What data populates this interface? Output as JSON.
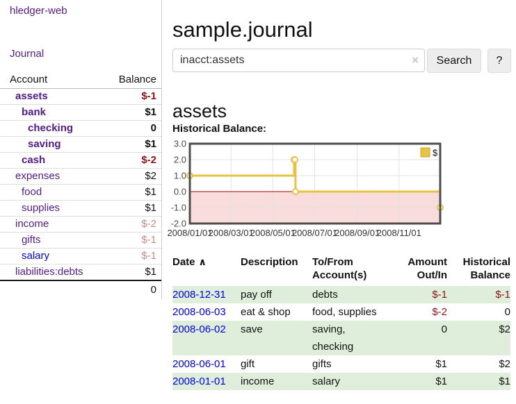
{
  "app": {
    "brand": "hledger-web"
  },
  "nav": {
    "journal": "Journal"
  },
  "accounts_panel": {
    "col_account": "Account",
    "col_balance": "Balance",
    "rows": [
      {
        "name": "assets",
        "depth": 0,
        "bold": true,
        "link_color": "purple",
        "balance": "$-1",
        "balance_style": "neg"
      },
      {
        "name": "bank",
        "depth": 1,
        "bold": true,
        "link_color": "purple",
        "balance": "$1",
        "balance_style": "normal"
      },
      {
        "name": "checking",
        "depth": 2,
        "bold": true,
        "link_color": "purple",
        "balance": "0",
        "balance_style": "normal"
      },
      {
        "name": "saving",
        "depth": 2,
        "bold": true,
        "link_color": "purple",
        "balance": "$1",
        "balance_style": "normal"
      },
      {
        "name": "cash",
        "depth": 1,
        "bold": true,
        "link_color": "purple",
        "balance": "$-2",
        "balance_style": "neg"
      },
      {
        "name": "expenses",
        "depth": 0,
        "bold": false,
        "link_color": "purple",
        "balance": "$2",
        "balance_style": "normal"
      },
      {
        "name": "food",
        "depth": 1,
        "bold": false,
        "link_color": "purple",
        "balance": "$1",
        "balance_style": "normal"
      },
      {
        "name": "supplies",
        "depth": 1,
        "bold": false,
        "link_color": "purple",
        "balance": "$1",
        "balance_style": "normal"
      },
      {
        "name": "income",
        "depth": 0,
        "bold": false,
        "link_color": "purple",
        "balance": "$-2",
        "balance_style": "neg-soft"
      },
      {
        "name": "gifts",
        "depth": 1,
        "bold": false,
        "link_color": "purple",
        "balance": "$-1",
        "balance_style": "neg-soft"
      },
      {
        "name": "salary",
        "depth": 1,
        "bold": false,
        "link_color": "blue",
        "balance": "$-1",
        "balance_style": "neg-soft"
      },
      {
        "name": "liabilities:debts",
        "depth": 0,
        "bold": false,
        "link_color": "purple",
        "balance": "$1",
        "balance_style": "normal"
      }
    ],
    "total": "0"
  },
  "main": {
    "title": "sample.journal",
    "register_heading": "assets",
    "chart_label": "Historical Balance:"
  },
  "search": {
    "value": "inacct:assets",
    "clear_icon": "×",
    "search_button": "Search",
    "help_button": "?"
  },
  "chart_data": {
    "type": "line",
    "step": true,
    "title": "",
    "xlabel": "",
    "ylabel": "",
    "series": [
      {
        "name": "$",
        "color": "#e8c240",
        "points": [
          [
            "2008-01-01",
            1.0
          ],
          [
            "2008-06-01",
            2.0
          ],
          [
            "2008-06-02",
            2.0
          ],
          [
            "2008-06-03",
            0.0
          ],
          [
            "2008-12-31",
            -1.0
          ]
        ]
      }
    ],
    "ylim": [
      -2.0,
      3.0
    ],
    "yticks": [
      "3.0",
      "2.0",
      "1.0",
      "0.0",
      "-1.0",
      "-2.0"
    ],
    "xticks": [
      "2008/01/01",
      "2008/03/01",
      "2008/05/01",
      "2008/07/01",
      "2008/09/01",
      "2008/11/01"
    ],
    "legend": {
      "label": "$",
      "position": "top-right"
    },
    "grid": true,
    "colors": {
      "line": "#e8c240",
      "marker_fill": "#ffffff",
      "border": "#4d4d4d",
      "gridline": "#e2e2e2",
      "negative_region": "#f9dcdc",
      "zero_line": "#a40000"
    }
  },
  "register_table": {
    "sort_icon": "∧",
    "headers": [
      {
        "line1": "Date",
        "line2": "",
        "align": "left",
        "sorted": true
      },
      {
        "line1": "Description",
        "line2": "",
        "align": "left",
        "sorted": false
      },
      {
        "line1": "To/From",
        "line2": "Account(s)",
        "align": "left",
        "sorted": false
      },
      {
        "line1": "Amount",
        "line2": "Out/In",
        "align": "right",
        "sorted": false
      },
      {
        "line1": "Historical",
        "line2": "Balance",
        "align": "right",
        "sorted": false
      }
    ],
    "rows": [
      {
        "date": "2008-12-31",
        "description": "pay off",
        "accounts": [
          "debts"
        ],
        "amount": "$-1",
        "amount_neg": true,
        "balance": "$-1",
        "balance_neg": true
      },
      {
        "date": "2008-06-03",
        "description": "eat & shop",
        "accounts": [
          "food, supplies"
        ],
        "amount": "$-2",
        "amount_neg": true,
        "balance": "0",
        "balance_neg": false
      },
      {
        "date": "2008-06-02",
        "description": "save",
        "accounts": [
          "saving,",
          "checking"
        ],
        "amount": "0",
        "amount_neg": false,
        "balance": "$2",
        "balance_neg": false
      },
      {
        "date": "2008-06-01",
        "description": "gift",
        "accounts": [
          "gifts"
        ],
        "amount": "$1",
        "amount_neg": false,
        "balance": "$2",
        "balance_neg": false
      },
      {
        "date": "2008-01-01",
        "description": "income",
        "accounts": [
          "salary"
        ],
        "amount": "$1",
        "amount_neg": false,
        "balance": "$1",
        "balance_neg": false
      }
    ]
  }
}
